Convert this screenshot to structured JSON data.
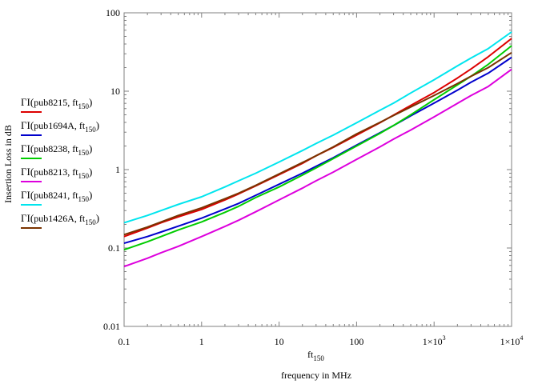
{
  "chart_data": {
    "type": "line",
    "x_scale": "log",
    "y_scale": "log",
    "xlim": [
      0.1,
      10000
    ],
    "ylim": [
      0.01,
      100
    ],
    "x_ticks": [
      {
        "value": 0.1,
        "mant": "0.1",
        "exp": ""
      },
      {
        "value": 1,
        "mant": "1",
        "exp": ""
      },
      {
        "value": 10,
        "mant": "10",
        "exp": ""
      },
      {
        "value": 100,
        "mant": "100",
        "exp": ""
      },
      {
        "value": 1000,
        "mant": "1×10",
        "exp": "3"
      },
      {
        "value": 10000,
        "mant": "1×10",
        "exp": "4"
      }
    ],
    "y_ticks": [
      {
        "value": 100,
        "label": "100"
      },
      {
        "value": 10,
        "label": "10"
      },
      {
        "value": 1,
        "label": "1"
      },
      {
        "value": 0.1,
        "label": "0.1"
      },
      {
        "value": 0.01,
        "label": "0.01"
      }
    ],
    "x_label": {
      "main": "ft",
      "sub": "150"
    },
    "x_caption": "frequency in MHz",
    "y_label": "Insertion Loss in dB",
    "grid": false,
    "legend_position": "left",
    "x": [
      0.1,
      0.2,
      0.3,
      0.5,
      1,
      2,
      3,
      5,
      10,
      20,
      30,
      50,
      100,
      200,
      300,
      500,
      1000,
      2000,
      3000,
      5000,
      10000
    ],
    "series": [
      {
        "name": "ΓI(pub8215, ft150)",
        "fn": "ΓI",
        "arg": "pub8215",
        "var": "ft",
        "sub": "150",
        "color": "#dd0000",
        "values": [
          0.14,
          0.18,
          0.21,
          0.25,
          0.31,
          0.41,
          0.49,
          0.62,
          0.86,
          1.2,
          1.5,
          1.92,
          2.75,
          3.95,
          4.95,
          6.6,
          9.6,
          14.7,
          19.2,
          27.5,
          47
        ]
      },
      {
        "name": "ΓI(pub1694A, ft150)",
        "fn": "ΓI",
        "arg": "pub1694A",
        "var": "ft",
        "sub": "150",
        "color": "#0000cc",
        "values": [
          0.115,
          0.14,
          0.16,
          0.19,
          0.24,
          0.315,
          0.37,
          0.47,
          0.65,
          0.9,
          1.1,
          1.42,
          2.05,
          2.95,
          3.65,
          4.85,
          7.05,
          10.3,
          13,
          17,
          27
        ]
      },
      {
        "name": "ΓI(pub8238, ft150)",
        "fn": "ΓI",
        "arg": "pub8238",
        "var": "ft",
        "sub": "150",
        "color": "#00cc00",
        "values": [
          0.095,
          0.12,
          0.14,
          0.17,
          0.215,
          0.285,
          0.34,
          0.44,
          0.6,
          0.85,
          1.05,
          1.38,
          2,
          2.9,
          3.65,
          5,
          7.8,
          12,
          15.5,
          22,
          38
        ]
      },
      {
        "name": "ΓI(pub8213, ft150)",
        "fn": "ΓI",
        "arg": "pub8213",
        "var": "ft",
        "sub": "150",
        "color": "#dd00dd",
        "values": [
          0.058,
          0.074,
          0.087,
          0.105,
          0.14,
          0.188,
          0.226,
          0.29,
          0.41,
          0.58,
          0.72,
          0.93,
          1.35,
          1.95,
          2.45,
          3.2,
          4.7,
          7,
          8.8,
          11.5,
          19
        ]
      },
      {
        "name": "ΓI(pub8241, ft150)",
        "fn": "ΓI",
        "arg": "pub8241",
        "var": "ft",
        "sub": "150",
        "color": "#00e5ee",
        "values": [
          0.21,
          0.26,
          0.3,
          0.36,
          0.45,
          0.6,
          0.72,
          0.9,
          1.25,
          1.75,
          2.15,
          2.75,
          3.95,
          5.7,
          7.05,
          9.5,
          14,
          21,
          26.5,
          35,
          57
        ]
      },
      {
        "name": "ΓI(pub1426A, ft150)",
        "fn": "ΓI",
        "arg": "pub1426A",
        "var": "ft",
        "sub": "150",
        "color": "#7a3300",
        "values": [
          0.148,
          0.185,
          0.215,
          0.26,
          0.325,
          0.425,
          0.5,
          0.63,
          0.88,
          1.23,
          1.5,
          1.95,
          2.85,
          4,
          4.9,
          6.3,
          8.8,
          12.5,
          15.5,
          20,
          31
        ]
      }
    ]
  }
}
